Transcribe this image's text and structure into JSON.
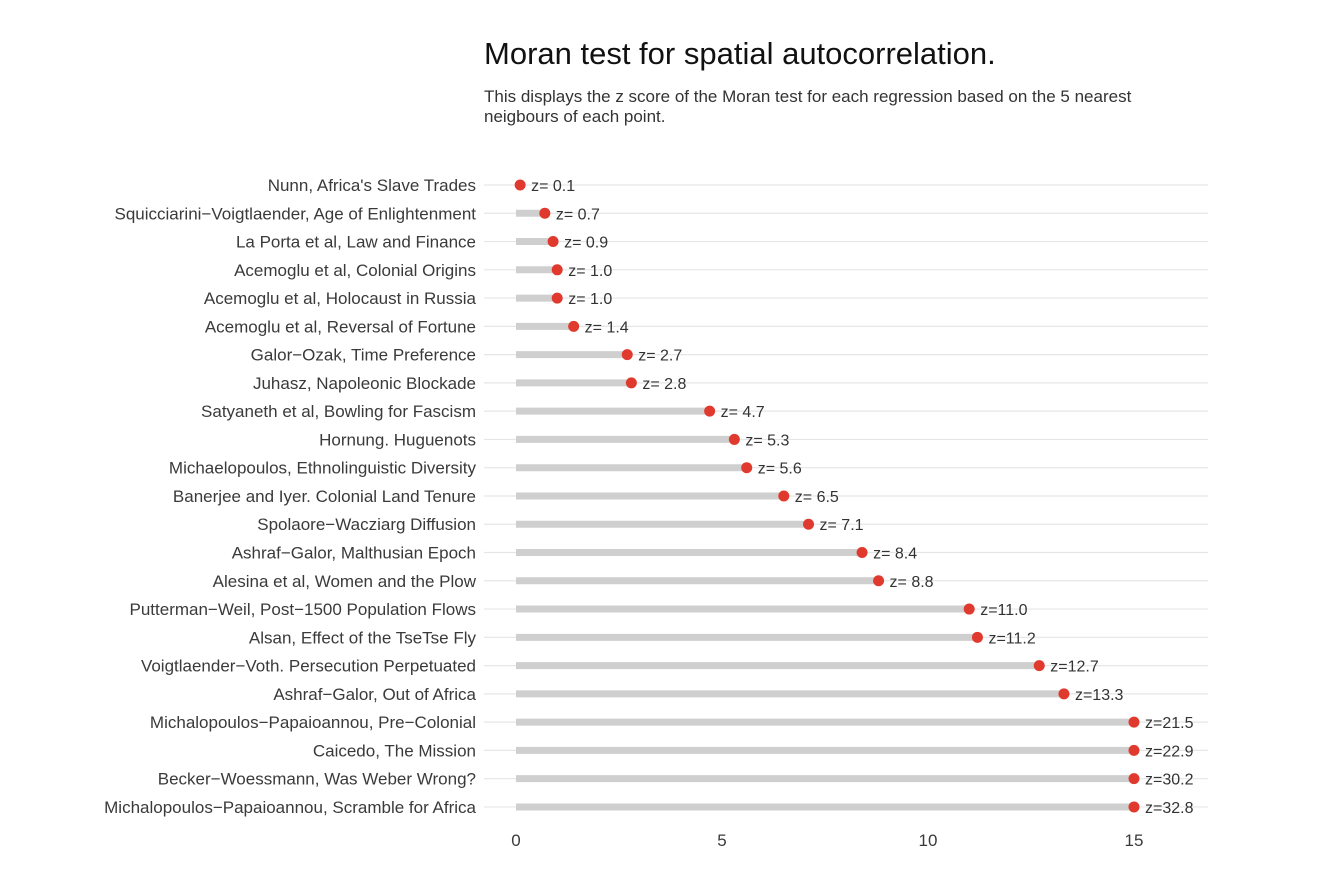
{
  "chart_data": {
    "type": "lollipop",
    "title": "Moran test for spatial autocorrelation.",
    "subtitle": "This displays the z score of the Moran test for each regression based on the 5 nearest neigbours of each point.",
    "xlabel": "",
    "ylabel": "",
    "xlim": [
      0,
      15
    ],
    "x_ticks": [
      0,
      5,
      10,
      15
    ],
    "grid": "horizontal",
    "point_color": "#e03a2f",
    "bar_color": "#cfcfcf",
    "rows": [
      {
        "label": "Nunn, Africa's Slave Trades",
        "z": 0.1,
        "z_label": "z= 0.1"
      },
      {
        "label": "Squicciarini−Voigtlaender, Age of Enlightenment",
        "z": 0.7,
        "z_label": "z= 0.7"
      },
      {
        "label": "La Porta et al, Law and Finance",
        "z": 0.9,
        "z_label": "z= 0.9"
      },
      {
        "label": "Acemoglu et al, Colonial Origins",
        "z": 1.0,
        "z_label": "z= 1.0"
      },
      {
        "label": "Acemoglu et al, Holocaust in Russia",
        "z": 1.0,
        "z_label": "z= 1.0"
      },
      {
        "label": "Acemoglu et al, Reversal of Fortune",
        "z": 1.4,
        "z_label": "z= 1.4"
      },
      {
        "label": "Galor−Ozak, Time Preference",
        "z": 2.7,
        "z_label": "z= 2.7"
      },
      {
        "label": "Juhasz, Napoleonic Blockade",
        "z": 2.8,
        "z_label": "z= 2.8"
      },
      {
        "label": "Satyaneth et al, Bowling for Fascism",
        "z": 4.7,
        "z_label": "z= 4.7"
      },
      {
        "label": "Hornung. Huguenots",
        "z": 5.3,
        "z_label": "z= 5.3"
      },
      {
        "label": "Michaelopoulos, Ethnolinguistic Diversity",
        "z": 5.6,
        "z_label": "z= 5.6"
      },
      {
        "label": "Banerjee and Iyer. Colonial Land Tenure",
        "z": 6.5,
        "z_label": "z= 6.5"
      },
      {
        "label": "Spolaore−Wacziarg Diffusion",
        "z": 7.1,
        "z_label": "z= 7.1"
      },
      {
        "label": "Ashraf−Galor, Malthusian Epoch",
        "z": 8.4,
        "z_label": "z= 8.4"
      },
      {
        "label": "Alesina et al, Women and the Plow",
        "z": 8.8,
        "z_label": "z= 8.8"
      },
      {
        "label": "Putterman−Weil, Post−1500 Population Flows",
        "z": 11.0,
        "z_label": "z=11.0"
      },
      {
        "label": "Alsan, Effect of the TseTse Fly",
        "z": 11.2,
        "z_label": "z=11.2"
      },
      {
        "label": "Voigtlaender−Voth. Persecution Perpetuated",
        "z": 12.7,
        "z_label": "z=12.7"
      },
      {
        "label": "Ashraf−Galor, Out of Africa",
        "z": 13.3,
        "z_label": "z=13.3"
      },
      {
        "label": "Michalopoulos−Papaioannou, Pre−Colonial",
        "z": 21.5,
        "z_label": "z=21.5"
      },
      {
        "label": "Caicedo, The Mission",
        "z": 22.9,
        "z_label": "z=22.9"
      },
      {
        "label": "Becker−Woessmann, Was Weber Wrong?",
        "z": 30.2,
        "z_label": "z=30.2"
      },
      {
        "label": "Michalopoulos−Papaioannou, Scramble for Africa",
        "z": 32.8,
        "z_label": "z=32.8"
      }
    ]
  }
}
